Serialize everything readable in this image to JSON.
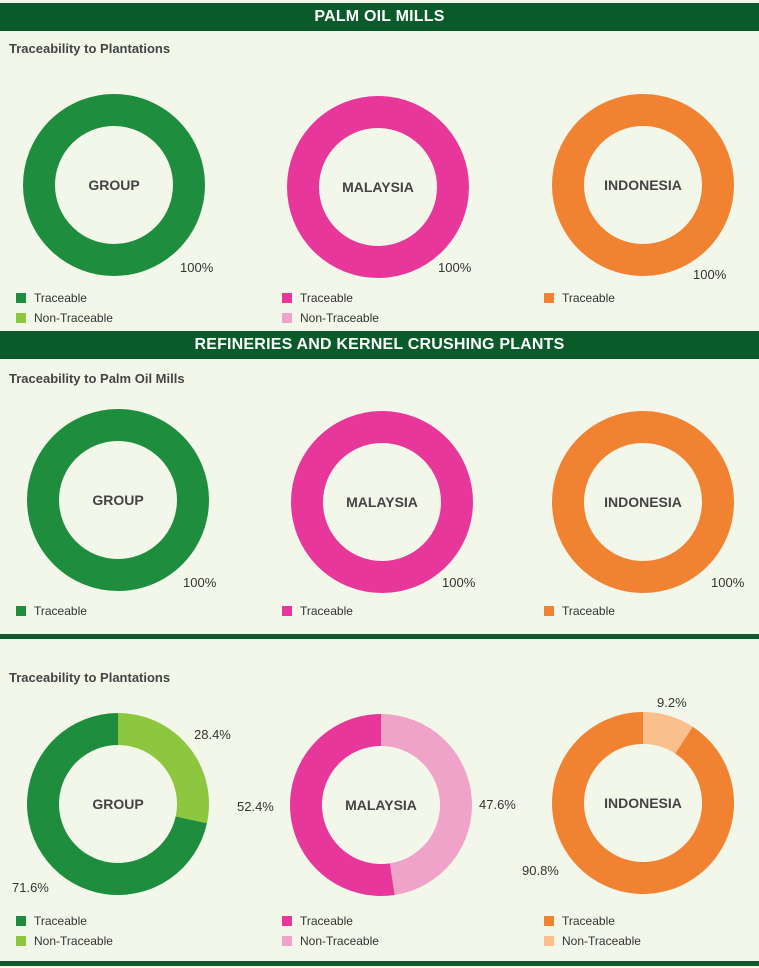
{
  "sections": {
    "palm_oil_mills": "PALM OIL MILLS",
    "refineries": "REFINERIES AND KERNEL CRUSHING PLANTS"
  },
  "subtitles": {
    "mills_to_plantations": "Traceability to Plantations",
    "refineries_to_mills": "Traceability to Palm Oil Mills",
    "refineries_to_plantations": "Traceability to Plantations"
  },
  "colors": {
    "group": "#1e8e3e",
    "group_light": "#8dc63f",
    "malaysia": "#e8379a",
    "malaysia_light": "#f0a3c8",
    "indonesia": "#f08232",
    "indonesia_light": "#f9c08e",
    "banner": "#0b5a2a"
  },
  "chart_data": [
    {
      "type": "pie",
      "title": "GROUP",
      "categories": [
        "Traceable",
        "Non-Traceable"
      ],
      "values": [
        100,
        0
      ],
      "labels": [
        "100%"
      ],
      "legend": [
        "Traceable",
        "Non-Traceable"
      ]
    },
    {
      "type": "pie",
      "title": "MALAYSIA",
      "categories": [
        "Traceable",
        "Non-Traceable"
      ],
      "values": [
        100,
        0
      ],
      "labels": [
        "100%"
      ],
      "legend": [
        "Traceable",
        "Non-Traceable"
      ]
    },
    {
      "type": "pie",
      "title": "INDONESIA",
      "categories": [
        "Traceable"
      ],
      "values": [
        100
      ],
      "labels": [
        "100%"
      ],
      "legend": [
        "Traceable"
      ]
    },
    {
      "type": "pie",
      "title": "GROUP",
      "categories": [
        "Traceable"
      ],
      "values": [
        100
      ],
      "labels": [
        "100%"
      ],
      "legend": [
        "Traceable"
      ]
    },
    {
      "type": "pie",
      "title": "MALAYSIA",
      "categories": [
        "Traceable"
      ],
      "values": [
        100
      ],
      "labels": [
        "100%"
      ],
      "legend": [
        "Traceable"
      ]
    },
    {
      "type": "pie",
      "title": "INDONESIA",
      "categories": [
        "Traceable"
      ],
      "values": [
        100
      ],
      "labels": [
        "100%"
      ],
      "legend": [
        "Traceable"
      ]
    },
    {
      "type": "pie",
      "title": "GROUP",
      "categories": [
        "Traceable",
        "Non-Traceable"
      ],
      "values": [
        71.6,
        28.4
      ],
      "labels": [
        "71.6%",
        "28.4%"
      ],
      "legend": [
        "Traceable",
        "Non-Traceable"
      ]
    },
    {
      "type": "pie",
      "title": "MALAYSIA",
      "categories": [
        "Traceable",
        "Non-Traceable"
      ],
      "values": [
        52.4,
        47.6
      ],
      "labels": [
        "52.4%",
        "47.6%"
      ],
      "legend": [
        "Traceable",
        "Non-Traceable"
      ]
    },
    {
      "type": "pie",
      "title": "INDONESIA",
      "categories": [
        "Traceable",
        "Non-Traceable"
      ],
      "values": [
        90.8,
        9.2
      ],
      "labels": [
        "90.8%",
        "9.2%"
      ],
      "legend": [
        "Traceable",
        "Non-Traceable"
      ]
    }
  ]
}
